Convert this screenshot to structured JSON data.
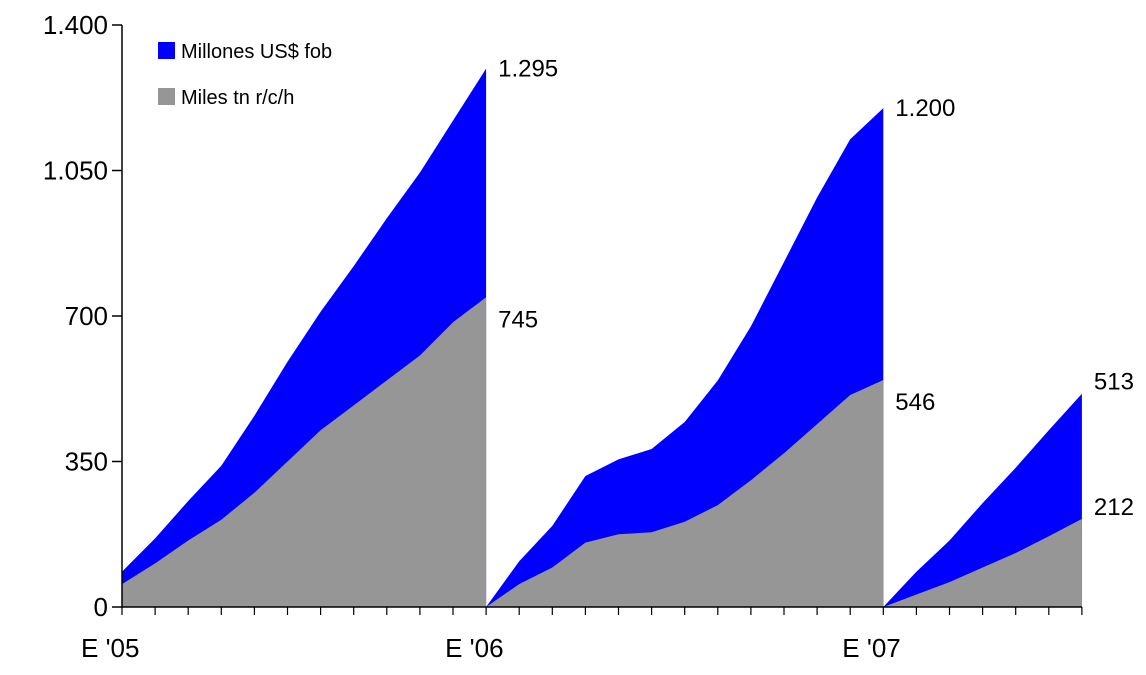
{
  "chart_data": {
    "type": "area",
    "stacked": false,
    "ylim": [
      0,
      1400
    ],
    "y_ticks": [
      0,
      350,
      700,
      1050,
      1400
    ],
    "y_tick_labels": [
      "0",
      "350",
      "700",
      "1.050",
      "1.400"
    ],
    "x_tick_labels": [
      {
        "label": "E '05",
        "index": 0
      },
      {
        "label": "E '06",
        "index": 11
      },
      {
        "label": "E '07",
        "index": 23
      }
    ],
    "legend": {
      "placement": "top-left",
      "entries": [
        {
          "name": "Millones US$ fob",
          "color": "#0000ff"
        },
        {
          "name": "Miles tn r/c/h",
          "color": "#969696"
        }
      ]
    },
    "x_tick_count": 30,
    "series": [
      {
        "name": "Millones US$ fob",
        "color": "#0000ff",
        "segments": [
          {
            "start_index": 0,
            "values": [
              85,
              165,
              255,
              340,
              460,
              590,
              710,
              820,
              935,
              1045,
              1170,
              1295
            ]
          },
          {
            "start_index": 11,
            "values": [
              0,
              110,
              195,
              315,
              355,
              380,
              445,
              545,
              675,
              830,
              985,
              1125,
              1200
            ]
          },
          {
            "start_index": 23,
            "values": [
              0,
              85,
              160,
              250,
              335,
              425,
              513
            ]
          }
        ]
      },
      {
        "name": "Miles tn r/c/h",
        "color": "#969696",
        "segments": [
          {
            "start_index": 0,
            "values": [
              55,
              105,
              160,
              210,
              275,
              350,
              425,
              485,
              545,
              605,
              685,
              745
            ]
          },
          {
            "start_index": 11,
            "values": [
              0,
              55,
              95,
              155,
              175,
              180,
              205,
              245,
              305,
              370,
              440,
              510,
              546
            ]
          },
          {
            "start_index": 23,
            "values": [
              0,
              30,
              60,
              95,
              130,
              170,
              212
            ]
          }
        ]
      }
    ],
    "data_labels": [
      {
        "text": "1.295",
        "series": 0,
        "segment": 0
      },
      {
        "text": "745",
        "series": 1,
        "segment": 0
      },
      {
        "text": "1.200",
        "series": 0,
        "segment": 1
      },
      {
        "text": "546",
        "series": 1,
        "segment": 1
      },
      {
        "text": "513",
        "series": 0,
        "segment": 2
      },
      {
        "text": "212",
        "series": 1,
        "segment": 2
      }
    ]
  }
}
